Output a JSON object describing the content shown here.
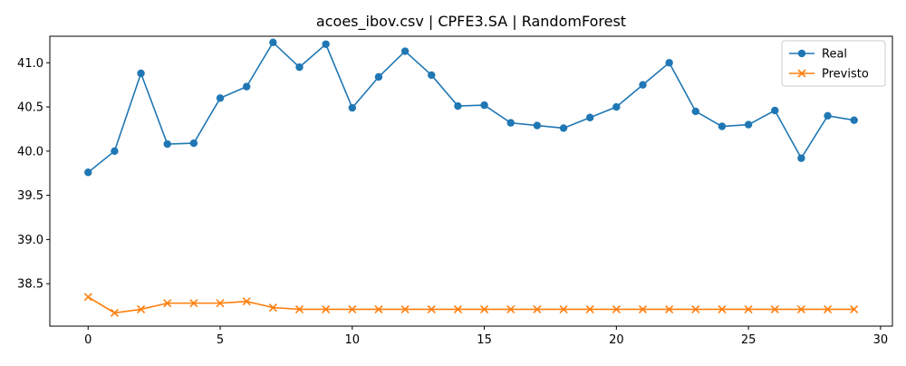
{
  "chart_data": {
    "type": "line",
    "title": "acoes_ibov.csv | CPFE3.SA | RandomForest",
    "xlabel": "",
    "ylabel": "",
    "xlim": [
      -1.45,
      30.45
    ],
    "ylim": [
      38.02,
      41.3
    ],
    "x_ticks": [
      0,
      5,
      10,
      15,
      20,
      25,
      30
    ],
    "y_ticks": [
      38.5,
      39.0,
      39.5,
      40.0,
      40.5,
      41.0
    ],
    "grid": false,
    "legend_position": "top-right",
    "x": [
      0,
      1,
      2,
      3,
      4,
      5,
      6,
      7,
      8,
      9,
      10,
      11,
      12,
      13,
      14,
      15,
      16,
      17,
      18,
      19,
      20,
      21,
      22,
      23,
      24,
      25,
      26,
      27,
      28,
      29
    ],
    "series": [
      {
        "name": "Real",
        "color": "#1f77b4",
        "marker": "circle",
        "values": [
          39.76,
          40.0,
          40.88,
          40.08,
          40.09,
          40.6,
          40.73,
          41.23,
          40.95,
          41.21,
          40.49,
          40.84,
          41.13,
          40.86,
          40.51,
          40.52,
          40.32,
          40.29,
          40.26,
          40.38,
          40.5,
          40.75,
          41.0,
          40.45,
          40.28,
          40.3,
          40.46,
          39.92,
          40.4,
          40.35
        ]
      },
      {
        "name": "Previsto",
        "color": "#ff7f0e",
        "marker": "x",
        "values": [
          38.35,
          38.17,
          38.21,
          38.28,
          38.28,
          38.28,
          38.3,
          38.23,
          38.21,
          38.21,
          38.21,
          38.21,
          38.21,
          38.21,
          38.21,
          38.21,
          38.21,
          38.21,
          38.21,
          38.21,
          38.21,
          38.21,
          38.21,
          38.21,
          38.21,
          38.21,
          38.21,
          38.21,
          38.21,
          38.21
        ]
      }
    ]
  }
}
